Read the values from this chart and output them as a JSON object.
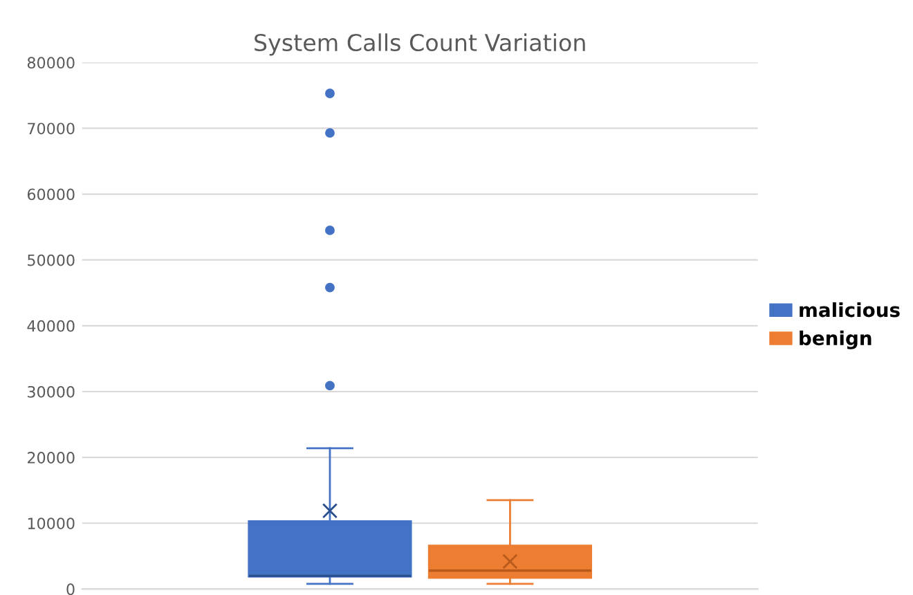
{
  "chart_data": {
    "type": "box",
    "title": "System Calls Count Variation",
    "categories": [
      null
    ],
    "series": [
      {
        "name": "malicious",
        "color": "#4472c4",
        "boxes": [
          {
            "low": 800,
            "q1": 1900,
            "median": 2000,
            "q3": 10300,
            "high": 21400,
            "mean": 11900,
            "outliers": [
              30900,
              45800,
              54500,
              69300,
              75300
            ]
          }
        ]
      },
      {
        "name": "benign",
        "color": "#ed7d31",
        "boxes": [
          {
            "low": 800,
            "q1": 1700,
            "median": 2800,
            "q3": 6600,
            "high": 13500,
            "mean": 4200
          }
        ]
      }
    ],
    "ylim": [
      0,
      80000
    ],
    "yticks": [
      0,
      10000,
      20000,
      30000,
      40000,
      50000,
      60000,
      70000,
      80000
    ],
    "grid": "y",
    "legend": "right"
  }
}
